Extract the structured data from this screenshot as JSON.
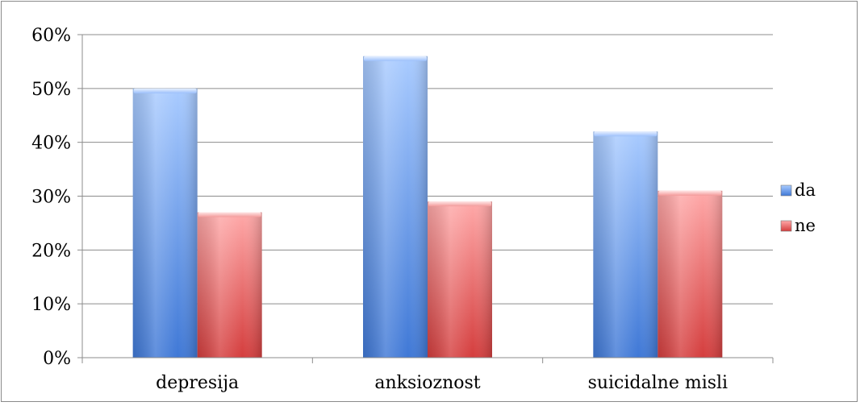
{
  "chart_data": {
    "type": "bar",
    "categories": [
      "depresija",
      "anksioznost",
      "suicidalne misli"
    ],
    "series": [
      {
        "name": "da",
        "values": [
          50,
          56,
          42
        ],
        "color": "#6b9be8"
      },
      {
        "name": "ne",
        "values": [
          27,
          29,
          31
        ],
        "color": "#e06e6e"
      }
    ],
    "y_ticks": [
      "0%",
      "10%",
      "20%",
      "30%",
      "40%",
      "50%",
      "60%"
    ],
    "ylim": [
      0,
      60
    ],
    "grid": true,
    "legend_position": "right"
  }
}
